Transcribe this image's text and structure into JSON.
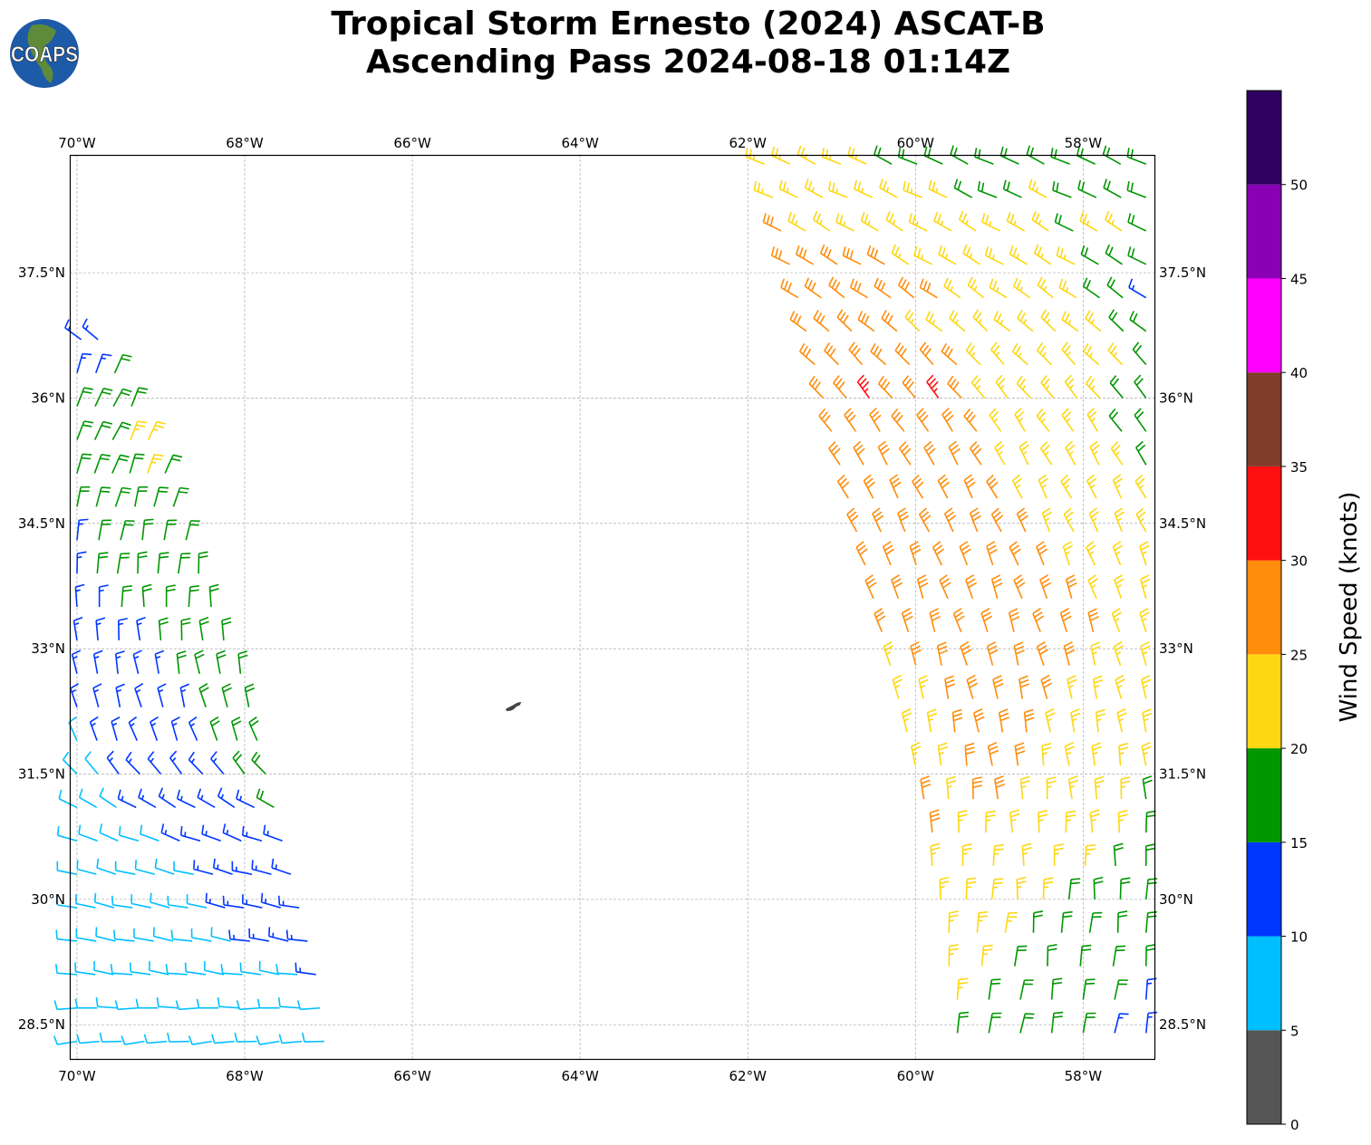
{
  "title": {
    "line1": "Tropical Storm Ernesto (2024) ASCAT-B",
    "line2": "Ascending Pass 2024-08-18 01:14Z"
  },
  "logo_text": "COAPS",
  "map": {
    "lon_range": [
      -70.086,
      -57.15
    ],
    "lat_range": [
      28.09,
      38.91
    ],
    "lon_ticks": [
      {
        "v": -70,
        "label": "70°W"
      },
      {
        "v": -68,
        "label": "68°W"
      },
      {
        "v": -66,
        "label": "66°W"
      },
      {
        "v": -64,
        "label": "64°W"
      },
      {
        "v": -62,
        "label": "62°W"
      },
      {
        "v": -60,
        "label": "60°W"
      },
      {
        "v": -58,
        "label": "58°W"
      }
    ],
    "lat_ticks": [
      {
        "v": 37.5,
        "label": "37.5°N"
      },
      {
        "v": 36,
        "label": "36°N"
      },
      {
        "v": 34.5,
        "label": "34.5°N"
      },
      {
        "v": 33,
        "label": "33°N"
      },
      {
        "v": 31.5,
        "label": "31.5°N"
      },
      {
        "v": 30,
        "label": "30°N"
      },
      {
        "v": 28.5,
        "label": "28.5°N"
      }
    ],
    "grid": true,
    "land_color": "#444444",
    "island": {
      "lon": -64.8,
      "lat": 32.32
    }
  },
  "colorbar": {
    "label": "Wind Speed (knots)",
    "bounds": [
      0,
      5,
      10,
      15,
      20,
      25,
      30,
      35,
      40,
      45,
      50,
      55
    ],
    "tick_labels": [
      "0",
      "5",
      "10",
      "15",
      "20",
      "25",
      "30",
      "35",
      "40",
      "45",
      "50"
    ],
    "colors": [
      "#555555",
      "#00bfff",
      "#0037ff",
      "#009600",
      "#fdd712",
      "#ff8c0a",
      "#ff1010",
      "#7f3d2a",
      "#ff00ff",
      "#8a00b5",
      "#2e0060"
    ]
  },
  "wind_swaths": [
    {
      "name": "west",
      "rows": [
        [
          36.7,
          -69.95,
          -69.75,
          310,
          "22"
        ],
        [
          36.3,
          -70.0,
          -69.55,
          20,
          "223"
        ],
        [
          35.9,
          -70.0,
          -69.35,
          25,
          "3333"
        ],
        [
          35.5,
          -70.0,
          -69.15,
          25,
          "33344"
        ],
        [
          35.1,
          -70.0,
          -68.95,
          20,
          "333343"
        ],
        [
          34.7,
          -70.0,
          -68.85,
          15,
          "333333"
        ],
        [
          34.3,
          -70.0,
          -68.7,
          10,
          "233333"
        ],
        [
          33.9,
          -70.0,
          -68.55,
          5,
          "2333333"
        ],
        [
          33.5,
          -70.0,
          -68.4,
          0,
          "2233333"
        ],
        [
          33.1,
          -70.0,
          -68.25,
          355,
          "22223333"
        ],
        [
          32.7,
          -70.0,
          -68.05,
          350,
          "222223333"
        ],
        [
          32.3,
          -70.0,
          -67.95,
          345,
          "222222333"
        ],
        [
          31.9,
          -70.0,
          -67.85,
          340,
          "1222222333"
        ],
        [
          31.5,
          -70.0,
          -67.75,
          320,
          "1122222233"
        ],
        [
          31.1,
          -70.0,
          -67.65,
          300,
          "11122222223"
        ],
        [
          30.7,
          -70.0,
          -67.55,
          290,
          "11111222222"
        ],
        [
          30.3,
          -70.0,
          -67.45,
          285,
          "111111122222"
        ],
        [
          29.9,
          -70.0,
          -67.35,
          282,
          "1111111122222"
        ],
        [
          29.5,
          -70.0,
          -67.25,
          280,
          "1111111112222"
        ],
        [
          29.1,
          -70.0,
          -67.15,
          278,
          "11111111111112"
        ],
        [
          28.7,
          -70.0,
          -67.1,
          270,
          "1111111111111"
        ],
        [
          28.3,
          -70.0,
          -67.05,
          265,
          "111111111111"
        ]
      ]
    },
    {
      "name": "east",
      "rows": [
        [
          38.8,
          -61.8,
          -57.25,
          295,
          "4444433333333333"
        ],
        [
          38.4,
          -61.7,
          -57.25,
          295,
          "4444444433343333"
        ],
        [
          38.0,
          -61.6,
          -57.25,
          300,
          "5444444444443443"
        ],
        [
          37.6,
          -61.5,
          -57.25,
          300,
          "5555544444444333"
        ],
        [
          37.2,
          -61.4,
          -57.25,
          305,
          "5555555444444332"
        ],
        [
          36.8,
          -61.3,
          -57.25,
          310,
          "5555544444444433"
        ],
        [
          36.4,
          -61.2,
          -57.25,
          315,
          "555555544444443"
        ],
        [
          36.0,
          -61.1,
          -57.25,
          320,
          "556556544444433"
        ],
        [
          35.6,
          -61.0,
          -57.25,
          325,
          "55555554444433"
        ],
        [
          35.2,
          -60.9,
          -57.25,
          330,
          "55555554444443"
        ],
        [
          34.8,
          -60.8,
          -57.25,
          332,
          "5555555444444"
        ],
        [
          34.4,
          -60.7,
          -57.25,
          335,
          "5555555544444"
        ],
        [
          34.0,
          -60.6,
          -57.25,
          338,
          "555555554444"
        ],
        [
          33.6,
          -60.5,
          -57.25,
          340,
          "555555555444"
        ],
        [
          33.2,
          -60.4,
          -57.25,
          342,
          "55555555544"
        ],
        [
          32.8,
          -60.3,
          -57.25,
          345,
          "45555555444"
        ],
        [
          32.4,
          -60.2,
          -57.25,
          347,
          "44555554444"
        ],
        [
          32.0,
          -60.1,
          -57.25,
          350,
          "44555544444"
        ],
        [
          31.6,
          -60.0,
          -57.25,
          352,
          "4455544444"
        ],
        [
          31.2,
          -59.9,
          -57.25,
          355,
          "5455444443"
        ],
        [
          30.8,
          -59.8,
          -57.25,
          358,
          "544444443"
        ],
        [
          30.4,
          -59.8,
          -57.25,
          0,
          "44444433"
        ],
        [
          30.0,
          -59.7,
          -57.25,
          2,
          "444443333"
        ],
        [
          29.6,
          -59.6,
          -57.25,
          5,
          "44433333"
        ],
        [
          29.2,
          -59.6,
          -57.25,
          5,
          "4433333"
        ],
        [
          28.8,
          -59.5,
          -57.25,
          8,
          "4333332"
        ],
        [
          28.4,
          -59.5,
          -57.25,
          10,
          "3333322"
        ]
      ]
    }
  ]
}
